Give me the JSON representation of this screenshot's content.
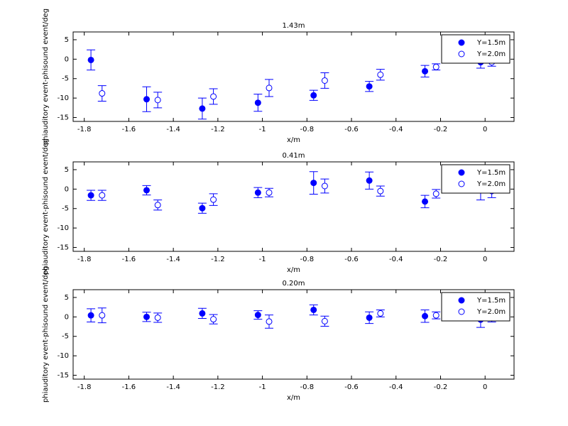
{
  "chart_data": [
    {
      "type": "errorbar",
      "title": "1.43m",
      "xlabel": "x/m",
      "ylabel": "phiauditory event-phisound event/deg",
      "xlim": [
        -1.85,
        0.13
      ],
      "ylim": [
        -16,
        7
      ],
      "xticks": [
        -1.8,
        -1.6,
        -1.4,
        -1.2,
        -1,
        -0.8,
        -0.6,
        -0.4,
        -0.2,
        0
      ],
      "yticks": [
        5,
        0,
        -5,
        -10,
        -15
      ],
      "legend": "upper right",
      "series": [
        {
          "name": "Y=1.5m",
          "color": "#0000ff",
          "marker": "filled",
          "x": [
            -1.77,
            -1.52,
            -1.27,
            -1.02,
            -0.77,
            -0.52,
            -0.27,
            -0.02
          ],
          "values": [
            -0.2,
            -10.3,
            -12.7,
            -11.2,
            -9.3,
            -7.0,
            -3.1,
            -0.8
          ],
          "errors": [
            2.6,
            3.2,
            2.7,
            2.2,
            1.3,
            1.3,
            1.5,
            1.5
          ]
        },
        {
          "name": "Y=2.0m",
          "color": "#0000ff",
          "marker": "open",
          "x": [
            -1.72,
            -1.47,
            -1.22,
            -0.97,
            -0.72,
            -0.47,
            -0.22,
            0.03
          ],
          "values": [
            -8.8,
            -10.5,
            -9.6,
            -7.4,
            -5.5,
            -4.0,
            -2.0,
            -0.8
          ],
          "errors": [
            2.0,
            2.0,
            2.0,
            2.2,
            2.0,
            1.4,
            0.8,
            1.0
          ]
        }
      ]
    },
    {
      "type": "errorbar",
      "title": "0.41m",
      "xlabel": "x/m",
      "ylabel": "phiauditory event-phisound event/deg",
      "xlim": [
        -1.85,
        0.13
      ],
      "ylim": [
        -16,
        7
      ],
      "xticks": [
        -1.8,
        -1.6,
        -1.4,
        -1.2,
        -1,
        -0.8,
        -0.6,
        -0.4,
        -0.2,
        0
      ],
      "yticks": [
        5,
        0,
        -5,
        -10,
        -15
      ],
      "legend": "upper right",
      "series": [
        {
          "name": "Y=1.5m",
          "color": "#0000ff",
          "marker": "filled",
          "x": [
            -1.77,
            -1.52,
            -1.27,
            -1.02,
            -0.77,
            -0.52,
            -0.27,
            -0.02
          ],
          "values": [
            -1.6,
            -0.3,
            -4.9,
            -0.9,
            1.6,
            2.2,
            -3.2,
            -0.3
          ],
          "errors": [
            1.3,
            1.2,
            1.3,
            1.3,
            2.9,
            2.2,
            1.6,
            2.5
          ]
        },
        {
          "name": "Y=2.0m",
          "color": "#0000ff",
          "marker": "open",
          "x": [
            -1.72,
            -1.47,
            -1.22,
            -0.97,
            -0.72,
            -0.47,
            -0.22,
            0.03
          ],
          "values": [
            -1.6,
            -4.1,
            -2.7,
            -0.9,
            0.8,
            -0.5,
            -1.2,
            -0.5
          ],
          "errors": [
            1.3,
            1.3,
            1.5,
            1.1,
            1.8,
            1.3,
            1.1,
            1.7
          ]
        }
      ]
    },
    {
      "type": "errorbar",
      "title": "0.20m",
      "xlabel": "x/m",
      "ylabel": "phiauditory event-phisound event/deg",
      "xlim": [
        -1.85,
        0.13
      ],
      "ylim": [
        -16,
        7
      ],
      "xticks": [
        -1.8,
        -1.6,
        -1.4,
        -1.2,
        -1,
        -0.8,
        -0.6,
        -0.4,
        -0.2,
        0
      ],
      "yticks": [
        5,
        0,
        -5,
        -10,
        -15
      ],
      "legend": "upper right",
      "series": [
        {
          "name": "Y=1.5m",
          "color": "#0000ff",
          "marker": "filled",
          "x": [
            -1.77,
            -1.52,
            -1.27,
            -1.02,
            -0.77,
            -0.52,
            -0.27,
            -0.02
          ],
          "values": [
            0.4,
            0,
            0.9,
            0.5,
            1.8,
            -0.2,
            0.2,
            -0.7
          ],
          "errors": [
            1.7,
            1.2,
            1.3,
            1.1,
            1.3,
            1.5,
            1.6,
            2.0
          ]
        },
        {
          "name": "Y=2.0m",
          "color": "#0000ff",
          "marker": "open",
          "x": [
            -1.72,
            -1.47,
            -1.22,
            -0.97,
            -0.72,
            -0.47,
            -0.22,
            0.03
          ],
          "values": [
            0.4,
            -0.2,
            -0.6,
            -1.2,
            -1.1,
            0.9,
            0.4,
            -0.3
          ],
          "errors": [
            1.9,
            1.2,
            1.2,
            1.7,
            1.3,
            0.9,
            0.9,
            1.0
          ]
        }
      ]
    }
  ]
}
